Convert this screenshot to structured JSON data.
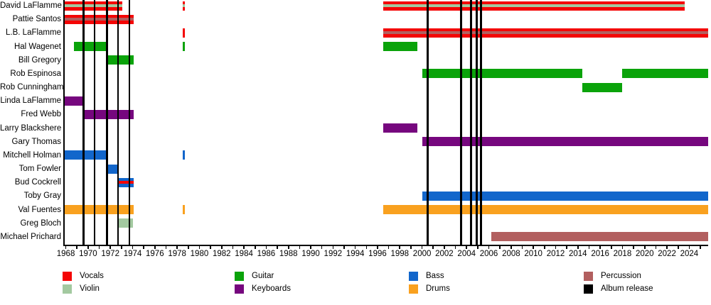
{
  "chart_data": {
    "type": "timeline",
    "description": "Band members timeline by instrument, with album release markers",
    "axis": {
      "start": 1967.9,
      "end": 2025.7,
      "tick_years_from": 1968,
      "tick_years_to": 2025,
      "year_labels": [
        1968,
        1970,
        1972,
        1974,
        1976,
        1978,
        1980,
        1982,
        1984,
        1986,
        1988,
        1990,
        1992,
        1994,
        1996,
        1998,
        2000,
        2002,
        2004,
        2006,
        2008,
        2010,
        2012,
        2014,
        2016,
        2018,
        2020,
        2022,
        2024
      ]
    },
    "colors": {
      "vocals": "#f40505",
      "violin": "#a3c9a0",
      "guitar": "#0aa30a",
      "keyboards": "#76077e",
      "bass": "#1266cb",
      "drums": "#f9a11f",
      "percussion": "#b25f5f",
      "album": "#000000"
    },
    "members": [
      {
        "name": "David LaFlamme",
        "periods": [
          {
            "from": 1967.9,
            "to": 1973.1,
            "role": "vocals",
            "stripe": "violin"
          },
          {
            "from": 1978.5,
            "to": 1978.7,
            "role": "vocals",
            "stripe": "violin"
          },
          {
            "from": 1996.5,
            "to": 2023.6,
            "role": "vocals",
            "stripe": "violin"
          }
        ]
      },
      {
        "name": "Pattie Santos",
        "periods": [
          {
            "from": 1967.9,
            "to": 1974.1,
            "role": "vocals",
            "stripe": "percussion"
          }
        ]
      },
      {
        "name": "L.B. LaFlamme",
        "periods": [
          {
            "from": 1978.5,
            "to": 1978.7,
            "role": "vocals"
          },
          {
            "from": 1996.5,
            "to": 2025.7,
            "role": "vocals",
            "stripe": "percussion"
          }
        ]
      },
      {
        "name": "Hal Wagenet",
        "periods": [
          {
            "from": 1968.7,
            "to": 1971.7,
            "role": "guitar"
          },
          {
            "from": 1978.5,
            "to": 1978.7,
            "role": "guitar"
          },
          {
            "from": 1996.5,
            "to": 1999.6,
            "role": "guitar"
          }
        ]
      },
      {
        "name": "Bill Gregory",
        "periods": [
          {
            "from": 1971.7,
            "to": 1974.1,
            "role": "guitar"
          }
        ]
      },
      {
        "name": "Rob Espinosa",
        "periods": [
          {
            "from": 2000.0,
            "to": 2014.4,
            "role": "guitar"
          },
          {
            "from": 2018.0,
            "to": 2025.7,
            "role": "guitar"
          }
        ]
      },
      {
        "name": "Rob Cunningham",
        "periods": [
          {
            "from": 2014.4,
            "to": 2018.0,
            "role": "guitar"
          }
        ]
      },
      {
        "name": "Linda LaFlamme",
        "periods": [
          {
            "from": 1967.9,
            "to": 1969.6,
            "role": "keyboards"
          }
        ]
      },
      {
        "name": "Fred Webb",
        "periods": [
          {
            "from": 1969.6,
            "to": 1974.1,
            "role": "keyboards"
          }
        ]
      },
      {
        "name": "Larry Blackshere",
        "periods": [
          {
            "from": 1996.5,
            "to": 1999.6,
            "role": "keyboards"
          }
        ]
      },
      {
        "name": "Gary Thomas",
        "periods": [
          {
            "from": 2000.0,
            "to": 2025.7,
            "role": "keyboards"
          }
        ]
      },
      {
        "name": "Mitchell Holman",
        "periods": [
          {
            "from": 1967.9,
            "to": 1971.7,
            "role": "bass"
          },
          {
            "from": 1978.5,
            "to": 1978.7,
            "role": "bass"
          }
        ]
      },
      {
        "name": "Tom Fowler",
        "periods": [
          {
            "from": 1971.7,
            "to": 1972.7,
            "role": "bass"
          }
        ]
      },
      {
        "name": "Bud Cockrell",
        "periods": [
          {
            "from": 1972.7,
            "to": 1974.1,
            "role": "bass",
            "stripe": "vocals"
          }
        ]
      },
      {
        "name": "Toby Gray",
        "periods": [
          {
            "from": 2000.0,
            "to": 2025.7,
            "role": "bass"
          }
        ]
      },
      {
        "name": "Val Fuentes",
        "periods": [
          {
            "from": 1967.9,
            "to": 1974.1,
            "role": "drums"
          },
          {
            "from": 1978.5,
            "to": 1978.7,
            "role": "drums"
          },
          {
            "from": 1996.5,
            "to": 2025.7,
            "role": "drums"
          }
        ]
      },
      {
        "name": "Greg Bloch",
        "periods": [
          {
            "from": 1972.7,
            "to": 1974.05,
            "role": "violin"
          }
        ]
      },
      {
        "name": "Michael Prichard",
        "periods": [
          {
            "from": 2006.2,
            "to": 2025.7,
            "role": "percussion"
          }
        ]
      }
    ],
    "album_releases": [
      1969.6,
      1970.6,
      1971.7,
      1972.7,
      1973.7,
      2000.5,
      2003.5,
      2004.4,
      2004.9,
      2005.3
    ],
    "legend_columns": [
      {
        "items": [
          {
            "label": "Vocals",
            "color": "vocals"
          },
          {
            "label": "Violin",
            "color": "violin"
          }
        ]
      },
      {
        "items": [
          {
            "label": "Guitar",
            "color": "guitar"
          },
          {
            "label": "Keyboards",
            "color": "keyboards"
          }
        ]
      },
      {
        "items": [
          {
            "label": "Bass",
            "color": "bass"
          },
          {
            "label": "Drums",
            "color": "drums"
          }
        ]
      },
      {
        "items": [
          {
            "label": "Percussion",
            "color": "percussion"
          },
          {
            "label": "Album release",
            "color": "album"
          }
        ]
      }
    ]
  }
}
